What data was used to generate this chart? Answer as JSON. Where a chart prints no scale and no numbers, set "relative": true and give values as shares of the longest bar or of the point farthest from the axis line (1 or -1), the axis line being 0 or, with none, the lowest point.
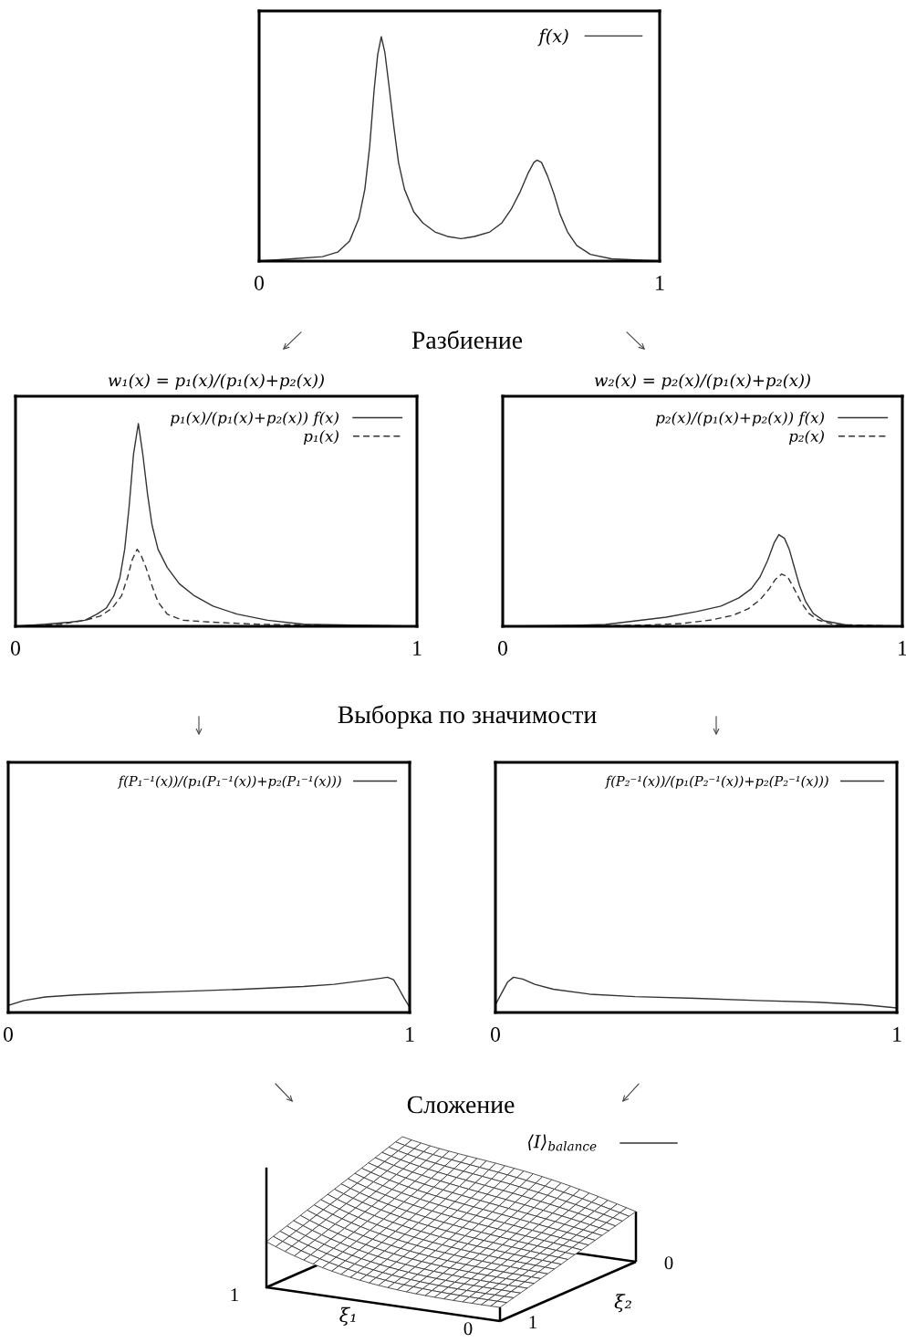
{
  "chart_data": [
    {
      "type": "line",
      "relative": true,
      "xlim": [
        0,
        1
      ],
      "xticks": [
        0,
        1
      ],
      "tick_labels": "x",
      "legend": "top right",
      "annotations": [
        "Разбиение"
      ],
      "series": [
        {
          "name": "f(x)",
          "color": "#333333",
          "x": [
            0,
            0.082,
            0.158,
            0.196,
            0.226,
            0.249,
            0.264,
            0.276,
            0.287,
            0.296,
            0.305,
            0.314,
            0.325,
            0.337,
            0.348,
            0.363,
            0.386,
            0.409,
            0.439,
            0.47,
            0.504,
            0.538,
            0.576,
            0.606,
            0.629,
            0.652,
            0.671,
            0.686,
            0.694,
            0.705,
            0.72,
            0.736,
            0.751,
            0.77,
            0.793,
            0.827,
            0.88,
            1.0
          ],
          "values": [
            0,
            0.01,
            0.02,
            0.04,
            0.09,
            0.19,
            0.32,
            0.51,
            0.76,
            0.92,
            1.0,
            0.93,
            0.77,
            0.59,
            0.44,
            0.32,
            0.22,
            0.17,
            0.13,
            0.11,
            0.1,
            0.11,
            0.13,
            0.17,
            0.23,
            0.31,
            0.39,
            0.44,
            0.45,
            0.44,
            0.38,
            0.3,
            0.21,
            0.13,
            0.07,
            0.03,
            0.01,
            0
          ]
        }
      ]
    },
    {
      "type": "line",
      "relative": true,
      "title": "w₁(x) = p₁(x)/(p₁(x)+p₂(x))",
      "xlim": [
        0,
        1
      ],
      "xticks": [
        0,
        1
      ],
      "tick_labels": "x",
      "legend": "top right",
      "annotations": [
        "Выборка по значимости"
      ],
      "series": [
        {
          "name": "p₁(x)/(p₁(x)+p₂(x)) f(x)",
          "color": "#333333",
          "x": [
            0,
            0.074,
            0.135,
            0.173,
            0.203,
            0.226,
            0.245,
            0.26,
            0.272,
            0.283,
            0.294,
            0.306,
            0.317,
            0.329,
            0.34,
            0.355,
            0.378,
            0.408,
            0.446,
            0.492,
            0.552,
            0.628,
            0.719,
            1.0
          ],
          "values": [
            0,
            0.01,
            0.02,
            0.03,
            0.06,
            0.09,
            0.15,
            0.24,
            0.38,
            0.59,
            0.85,
            1.0,
            0.85,
            0.65,
            0.5,
            0.38,
            0.29,
            0.21,
            0.15,
            0.1,
            0.06,
            0.03,
            0.01,
            0
          ]
        },
        {
          "name": "p₁(x)",
          "color": "#333333",
          "line_style": "dashed",
          "x": [
            0,
            0.112,
            0.173,
            0.211,
            0.241,
            0.264,
            0.279,
            0.291,
            0.303,
            0.313,
            0.325,
            0.34,
            0.355,
            0.378,
            0.416,
            0.492,
            0.605,
            1.0
          ],
          "values": [
            0,
            0.01,
            0.03,
            0.05,
            0.09,
            0.15,
            0.24,
            0.33,
            0.38,
            0.35,
            0.29,
            0.2,
            0.12,
            0.06,
            0.03,
            0.02,
            0.01,
            0
          ]
        }
      ]
    },
    {
      "type": "line",
      "relative": true,
      "title": "w₂(x) = p₂(x)/(p₁(x)+p₂(x))",
      "xlim": [
        0,
        1
      ],
      "xticks": [
        0,
        1
      ],
      "tick_labels": "x",
      "legend": "top right",
      "series": [
        {
          "name": "p₂(x)/(p₁(x)+p₂(x)) f(x)",
          "color": "#333333",
          "x": [
            0,
            0.181,
            0.257,
            0.333,
            0.409,
            0.485,
            0.546,
            0.591,
            0.622,
            0.644,
            0.663,
            0.679,
            0.691,
            0.705,
            0.717,
            0.728,
            0.743,
            0.758,
            0.777,
            0.804,
            0.865,
            1.0
          ],
          "values": [
            0,
            0.01,
            0.02,
            0.06,
            0.1,
            0.16,
            0.22,
            0.31,
            0.41,
            0.54,
            0.72,
            0.91,
            1.0,
            0.96,
            0.84,
            0.67,
            0.44,
            0.27,
            0.14,
            0.06,
            0.01,
            0
          ]
        },
        {
          "name": "p₂(x)",
          "color": "#333333",
          "line_style": "dashed",
          "x": [
            0,
            0.333,
            0.447,
            0.523,
            0.576,
            0.614,
            0.644,
            0.667,
            0.682,
            0.698,
            0.713,
            0.728,
            0.747,
            0.766,
            0.789,
            0.827,
            1.0
          ],
          "values": [
            0,
            0.01,
            0.03,
            0.07,
            0.12,
            0.19,
            0.29,
            0.41,
            0.51,
            0.57,
            0.54,
            0.42,
            0.26,
            0.14,
            0.07,
            0.02,
            0
          ]
        }
      ]
    },
    {
      "type": "line",
      "relative": true,
      "xlim": [
        0,
        1
      ],
      "xticks": [
        0,
        1
      ],
      "tick_labels": "x",
      "legend": "top right",
      "series": [
        {
          "name": "f(P₁⁻¹(x))/(p₁(P₁⁻¹(x))+p₂(P₁⁻¹(x)))",
          "color": "#333333",
          "x": [
            0,
            0.039,
            0.092,
            0.168,
            0.282,
            0.433,
            0.585,
            0.736,
            0.812,
            0.888,
            0.926,
            0.945,
            0.96,
            0.971,
            0.986,
            1.0
          ],
          "values": [
            0.2,
            0.34,
            0.44,
            0.5,
            0.55,
            0.6,
            0.66,
            0.74,
            0.8,
            0.91,
            0.97,
            1.0,
            0.93,
            0.72,
            0.41,
            0.15
          ]
        }
      ]
    },
    {
      "type": "line",
      "relative": true,
      "xlim": [
        0,
        1
      ],
      "xticks": [
        0,
        1
      ],
      "tick_labels": "x",
      "legend": "top right",
      "series": [
        {
          "name": "f(P₂⁻¹(x))/(p₁(P₂⁻¹(x))+p₂(P₂⁻¹(x)))",
          "color": "#333333",
          "x": [
            0,
            0.015,
            0.03,
            0.045,
            0.068,
            0.098,
            0.144,
            0.235,
            0.348,
            0.5,
            0.652,
            0.803,
            0.917,
            1.0
          ],
          "values": [
            0.22,
            0.54,
            0.86,
            1.0,
            0.95,
            0.8,
            0.66,
            0.52,
            0.45,
            0.4,
            0.34,
            0.29,
            0.22,
            0.13
          ]
        }
      ]
    },
    {
      "type": "other",
      "title": "Сложение",
      "xlabel": "ξ₁",
      "ylabel": "ξ₂",
      "annotations": [
        "⟨I⟩$_{balance}$",
        "1",
        "0",
        "1",
        "0"
      ]
    }
  ]
}
